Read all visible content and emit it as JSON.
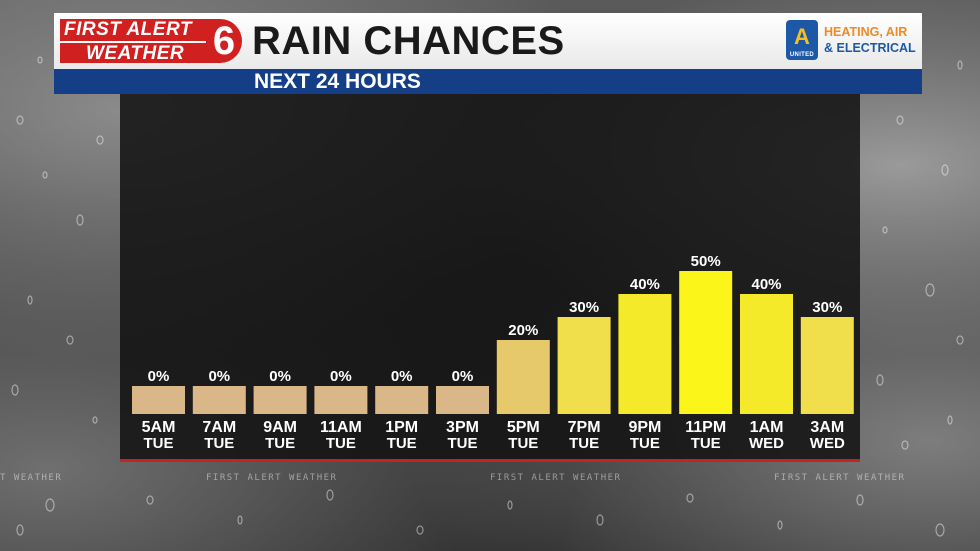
{
  "header": {
    "logo_line1": "FIRST ALERT",
    "logo_line2": "WEATHER",
    "logo_number": "6",
    "title": "RAIN CHANCES",
    "subtitle": "NEXT 24 HOURS",
    "sponsor_badge": "A",
    "sponsor_badge_small": "UNITED",
    "sponsor_line1": "HEATING, AIR",
    "sponsor_line2": "& ELECTRICAL"
  },
  "watermarks": [
    "T WEATHER",
    "FIRST ALERT WEATHER",
    "FIRST ALERT WEATHER",
    "FIRST ALERT WEATHER"
  ],
  "colors": {
    "brand_red": "#d0201f",
    "brand_blue": "#143f86",
    "bar_zero": "#d9b788",
    "bar_low": "#e6c96a",
    "bar_mid": "#f0de4a",
    "bar_high": "#f5ea2a",
    "bar_peak": "#fbf51a"
  },
  "chart_data": {
    "type": "bar",
    "title": "RAIN CHANCES",
    "subtitle": "NEXT 24 HOURS",
    "categories": [
      "5AM",
      "7AM",
      "9AM",
      "11AM",
      "1PM",
      "3PM",
      "5PM",
      "7PM",
      "9PM",
      "11PM",
      "1AM",
      "3AM"
    ],
    "days": [
      "TUE",
      "TUE",
      "TUE",
      "TUE",
      "TUE",
      "TUE",
      "TUE",
      "TUE",
      "TUE",
      "TUE",
      "WED",
      "WED"
    ],
    "values": [
      0,
      0,
      0,
      0,
      0,
      0,
      20,
      30,
      40,
      50,
      40,
      30
    ],
    "labels": [
      "0%",
      "0%",
      "0%",
      "0%",
      "0%",
      "0%",
      "20%",
      "30%",
      "40%",
      "50%",
      "40%",
      "30%"
    ],
    "unit": "%",
    "ylim": [
      0,
      100
    ],
    "grid": false,
    "legend": "none"
  }
}
